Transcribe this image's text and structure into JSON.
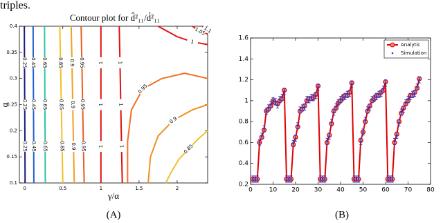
{
  "page_text": "triples.",
  "chart_data": [
    {
      "type": "contour",
      "title": "Contour plot for d̂²₁₁/d́²₁₁",
      "xlabel": "γ/α",
      "ylabel": "α",
      "caption": "(A)",
      "xlim": [
        -0.07,
        2.4
      ],
      "ylim": [
        0.1,
        0.4
      ],
      "xticks": [
        0,
        0.5,
        1,
        1.5,
        2
      ],
      "yticks": [
        0.1,
        0.15,
        0.2,
        0.25,
        0.3,
        0.35,
        0.4
      ],
      "contours": [
        {
          "level": 0.25,
          "color": "#1a1a7a",
          "x": [
            0.005,
            0.003,
            0.0,
            -0.003,
            -0.005
          ],
          "y": [
            0.1,
            0.17,
            0.25,
            0.33,
            0.4
          ]
        },
        {
          "level": 0.45,
          "color": "#1f5fd0",
          "x": [
            0.12,
            0.118,
            0.115,
            0.112,
            0.11
          ],
          "y": [
            0.1,
            0.17,
            0.25,
            0.33,
            0.4
          ]
        },
        {
          "level": 0.65,
          "color": "#2ec4a0",
          "x": [
            0.27,
            0.268,
            0.265,
            0.262,
            0.26
          ],
          "y": [
            0.1,
            0.17,
            0.25,
            0.33,
            0.4
          ]
        },
        {
          "level": 0.85,
          "color": "#f0c020",
          "x": [
            0.5,
            0.49,
            0.48,
            0.47,
            0.46
          ],
          "y": [
            0.1,
            0.17,
            0.25,
            0.33,
            0.4
          ]
        },
        {
          "level": 0.9,
          "color": "#f0a020",
          "x": [
            0.65,
            0.64,
            0.63,
            0.62,
            0.61
          ],
          "y": [
            0.1,
            0.17,
            0.25,
            0.33,
            0.4
          ]
        },
        {
          "level": 0.95,
          "color": "#e86020",
          "x": [
            0.78,
            0.77,
            0.76,
            0.75,
            0.74
          ],
          "y": [
            0.1,
            0.17,
            0.25,
            0.33,
            0.4
          ]
        },
        {
          "level": 1,
          "color": "#e01010",
          "x": [
            1.0,
            1.0,
            1.0,
            1.0,
            1.0
          ],
          "y": [
            0.1,
            0.17,
            0.25,
            0.33,
            0.4
          ]
        },
        {
          "level": 1,
          "color": "#e01010",
          "x": [
            1.28,
            1.27,
            1.26,
            1.25,
            1.24
          ],
          "y": [
            0.1,
            0.17,
            0.25,
            0.33,
            0.4
          ]
        },
        {
          "level": 0.95,
          "color": "#f07020",
          "x": [
            1.35,
            1.35,
            1.4,
            1.55,
            1.8,
            2.1,
            2.4
          ],
          "y": [
            0.1,
            0.18,
            0.24,
            0.28,
            0.3,
            0.31,
            0.3
          ]
        },
        {
          "level": 0.9,
          "color": "#f09020",
          "x": [
            1.62,
            1.65,
            1.75,
            1.95,
            2.2,
            2.4
          ],
          "y": [
            0.1,
            0.15,
            0.19,
            0.22,
            0.24,
            0.25
          ]
        },
        {
          "level": 0.85,
          "color": "#f0c030",
          "x": [
            1.85,
            1.92,
            2.02,
            2.15,
            2.28,
            2.4
          ],
          "y": [
            0.1,
            0.12,
            0.145,
            0.165,
            0.185,
            0.2
          ]
        },
        {
          "level": 1,
          "color": "#e01010",
          "x": [
            1.75,
            2.0,
            2.2,
            2.4
          ],
          "y": [
            0.4,
            0.38,
            0.37,
            0.365
          ]
        },
        {
          "level": 1.05,
          "color": "#e02010",
          "x": [
            2.2,
            2.3,
            2.4
          ],
          "y": [
            0.4,
            0.39,
            0.385
          ]
        },
        {
          "level": 1.1,
          "color": "#d01010",
          "x": [
            2.33,
            2.4
          ],
          "y": [
            0.4,
            0.393
          ]
        }
      ]
    },
    {
      "type": "line",
      "caption": "(B)",
      "xlim": [
        0,
        80
      ],
      "ylim": [
        0.2,
        1.6
      ],
      "xticks": [
        0,
        10,
        20,
        30,
        40,
        50,
        60,
        70,
        80
      ],
      "yticks": [
        0.2,
        0.4,
        0.6,
        0.8,
        1,
        1.2,
        1.4,
        1.6
      ],
      "legend": "upper right",
      "x": [
        1,
        2,
        3,
        4,
        5,
        6,
        7,
        8,
        9,
        10,
        11,
        12,
        13,
        14,
        15,
        16,
        17,
        18,
        19,
        20,
        21,
        22,
        23,
        24,
        25,
        26,
        27,
        28,
        29,
        30,
        31,
        32,
        33,
        34,
        35,
        36,
        37,
        38,
        39,
        40,
        41,
        42,
        43,
        44,
        45,
        46,
        47,
        48,
        49,
        50,
        51,
        52,
        53,
        54,
        55,
        56,
        57,
        58,
        59,
        60,
        61,
        62,
        63,
        64,
        65,
        66,
        67,
        68,
        69,
        70,
        71,
        72,
        73,
        74,
        75
      ],
      "series": [
        {
          "name": "Analytic",
          "color": "#e00000",
          "values": [
            0.25,
            0.25,
            0.25,
            0.6,
            0.65,
            0.72,
            0.9,
            0.92,
            0.95,
            1.0,
            0.98,
            0.97,
            1.0,
            1.02,
            1.1,
            0.25,
            0.25,
            0.25,
            0.58,
            0.65,
            0.75,
            0.9,
            0.92,
            0.95,
            1.0,
            1.02,
            1.02,
            1.03,
            1.06,
            1.14,
            0.25,
            0.25,
            0.25,
            0.6,
            0.67,
            0.78,
            0.9,
            0.93,
            0.98,
            1.0,
            1.03,
            1.05,
            1.05,
            1.08,
            1.17,
            0.25,
            0.25,
            0.25,
            0.62,
            0.7,
            0.8,
            0.9,
            0.95,
            1.0,
            1.02,
            1.05,
            1.05,
            1.08,
            1.1,
            1.18,
            0.25,
            0.25,
            0.25,
            0.6,
            0.68,
            0.8,
            0.88,
            0.93,
            0.97,
            1.0,
            1.05,
            1.05,
            1.08,
            1.12,
            1.21
          ]
        },
        {
          "name": "Simulation",
          "color": "#2040d0",
          "error": 0.03,
          "values": [
            0.25,
            0.25,
            0.25,
            0.6,
            0.66,
            0.73,
            0.9,
            0.93,
            0.96,
            1.0,
            0.99,
            0.96,
            1.01,
            1.03,
            1.09,
            0.25,
            0.25,
            0.25,
            0.59,
            0.64,
            0.76,
            0.91,
            0.93,
            0.94,
            1.01,
            1.01,
            1.03,
            1.03,
            1.05,
            1.13,
            0.25,
            0.25,
            0.25,
            0.61,
            0.66,
            0.79,
            0.89,
            0.94,
            0.98,
            1.01,
            1.03,
            1.04,
            1.06,
            1.07,
            1.16,
            0.25,
            0.25,
            0.25,
            0.61,
            0.7,
            0.81,
            0.91,
            0.94,
            1.01,
            1.02,
            1.04,
            1.06,
            1.07,
            1.11,
            1.17,
            0.25,
            0.25,
            0.25,
            0.61,
            0.67,
            0.79,
            0.89,
            0.92,
            0.98,
            1.01,
            1.04,
            1.06,
            1.07,
            1.13,
            1.2
          ]
        }
      ]
    }
  ]
}
